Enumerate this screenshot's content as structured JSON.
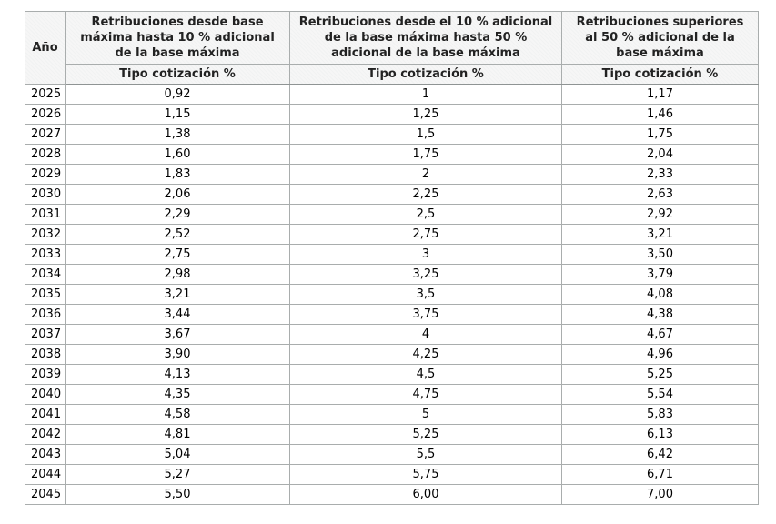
{
  "table": {
    "year_header": "Año",
    "subheader": "Tipo cotización %",
    "columns": [
      {
        "title": "Retribuciones desde base máxima hasta 10 % adicional de la base máxima"
      },
      {
        "title": "Retribuciones desde el 10 % adicional de la base máxima hasta 50 % adicional de la base máxima"
      },
      {
        "title": "Retribuciones superiores al 50 % adicional de la base máxima"
      }
    ],
    "rows": [
      {
        "year": "2025",
        "rates": [
          "0,92",
          "1",
          "1,17"
        ]
      },
      {
        "year": "2026",
        "rates": [
          "1,15",
          "1,25",
          "1,46"
        ]
      },
      {
        "year": "2027",
        "rates": [
          "1,38",
          "1,5",
          "1,75"
        ]
      },
      {
        "year": "2028",
        "rates": [
          "1,60",
          "1,75",
          "2,04"
        ]
      },
      {
        "year": "2029",
        "rates": [
          "1,83",
          "2",
          "2,33"
        ]
      },
      {
        "year": "2030",
        "rates": [
          "2,06",
          "2,25",
          "2,63"
        ]
      },
      {
        "year": "2031",
        "rates": [
          "2,29",
          "2,5",
          "2,92"
        ]
      },
      {
        "year": "2032",
        "rates": [
          "2,52",
          "2,75",
          "3,21"
        ]
      },
      {
        "year": "2033",
        "rates": [
          "2,75",
          "3",
          "3,50"
        ]
      },
      {
        "year": "2034",
        "rates": [
          "2,98",
          "3,25",
          "3,79"
        ]
      },
      {
        "year": "2035",
        "rates": [
          "3,21",
          "3,5",
          "4,08"
        ]
      },
      {
        "year": "2036",
        "rates": [
          "3,44",
          "3,75",
          "4,38"
        ]
      },
      {
        "year": "2037",
        "rates": [
          "3,67",
          "4",
          "4,67"
        ]
      },
      {
        "year": "2038",
        "rates": [
          "3,90",
          "4,25",
          "4,96"
        ]
      },
      {
        "year": "2039",
        "rates": [
          "4,13",
          "4,5",
          "5,25"
        ]
      },
      {
        "year": "2040",
        "rates": [
          "4,35",
          "4,75",
          "5,54"
        ]
      },
      {
        "year": "2041",
        "rates": [
          "4,58",
          "5",
          "5,83"
        ]
      },
      {
        "year": "2042",
        "rates": [
          "4,81",
          "5,25",
          "6,13"
        ]
      },
      {
        "year": "2043",
        "rates": [
          "5,04",
          "5,5",
          "6,42"
        ]
      },
      {
        "year": "2044",
        "rates": [
          "5,27",
          "5,75",
          "6,71"
        ]
      },
      {
        "year": "2045",
        "rates": [
          "5,50",
          "6,00",
          "7,00"
        ]
      }
    ],
    "border_color": "#a9adad",
    "header_bg": "#f4f4f4"
  },
  "chart_data": {
    "type": "table",
    "title": "",
    "columns": [
      "Año",
      "Retribuciones desde base máxima hasta 10 % adicional de la base máxima — Tipo cotización %",
      "Retribuciones desde el 10 % adicional de la base máxima hasta 50 % adicional de la base máxima — Tipo cotización %",
      "Retribuciones superiores al 50 % adicional de la base máxima — Tipo cotización %"
    ],
    "rows": [
      [
        2025,
        0.92,
        1,
        1.17
      ],
      [
        2026,
        1.15,
        1.25,
        1.46
      ],
      [
        2027,
        1.38,
        1.5,
        1.75
      ],
      [
        2028,
        1.6,
        1.75,
        2.04
      ],
      [
        2029,
        1.83,
        2,
        2.33
      ],
      [
        2030,
        2.06,
        2.25,
        2.63
      ],
      [
        2031,
        2.29,
        2.5,
        2.92
      ],
      [
        2032,
        2.52,
        2.75,
        3.21
      ],
      [
        2033,
        2.75,
        3,
        3.5
      ],
      [
        2034,
        2.98,
        3.25,
        3.79
      ],
      [
        2035,
        3.21,
        3.5,
        4.08
      ],
      [
        2036,
        3.44,
        3.75,
        4.38
      ],
      [
        2037,
        3.67,
        4,
        4.67
      ],
      [
        2038,
        3.9,
        4.25,
        4.96
      ],
      [
        2039,
        4.13,
        4.5,
        5.25
      ],
      [
        2040,
        4.35,
        4.75,
        5.54
      ],
      [
        2041,
        4.58,
        5,
        5.83
      ],
      [
        2042,
        4.81,
        5.25,
        6.13
      ],
      [
        2043,
        5.04,
        5.5,
        6.42
      ],
      [
        2044,
        5.27,
        5.75,
        6.71
      ],
      [
        2045,
        5.5,
        6.0,
        7.0
      ]
    ],
    "decimal_separator": ",",
    "number_format": "es-ES"
  }
}
